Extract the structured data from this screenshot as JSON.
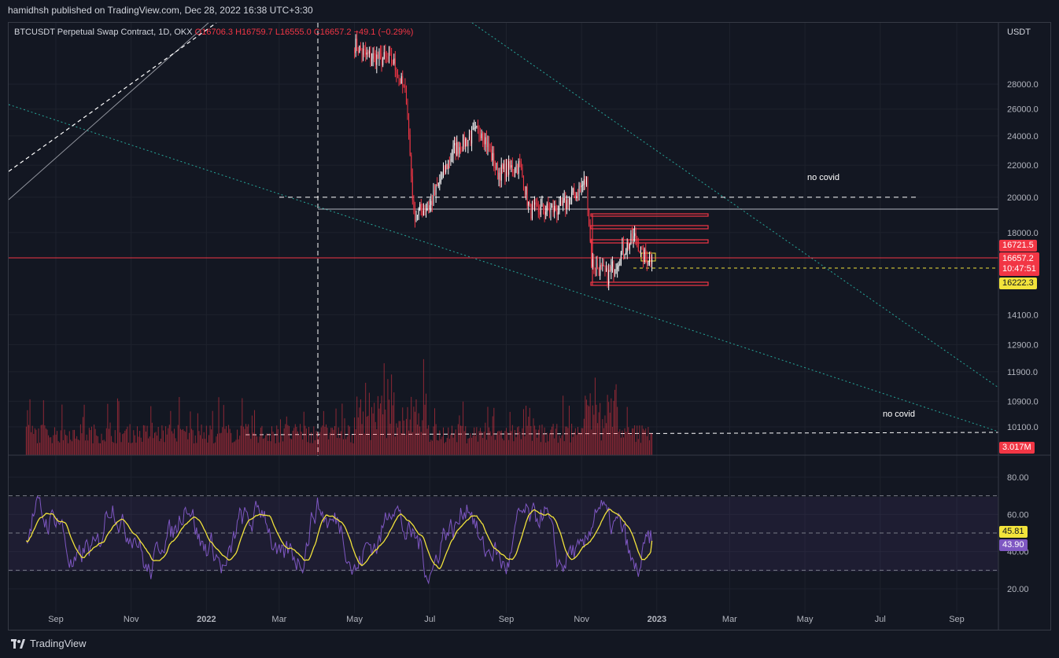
{
  "header": {
    "text": "hamidhsh published on TradingView.com, Dec 28, 2022 16:38 UTC+3:30"
  },
  "legend": {
    "symbol": "BTCUSDT Perpetual Swap Contract, 1D, OKX",
    "open": "O16706.3",
    "high": "H16759.7",
    "low": "L16555.0",
    "close": "C16657.2",
    "change": "−49.1 (−0.29%)"
  },
  "currency": "USDT",
  "annotations": {
    "top": "no covid",
    "bottom": "no covid"
  },
  "price_tags": {
    "p1": "16721.5",
    "last": "16657.2",
    "countdown": "10:47:51",
    "p2": "16222.3",
    "volume": "3.017M",
    "rsi_ma": "45.81",
    "rsi": "43.90"
  },
  "footer": {
    "brand": "TradingView"
  },
  "colors": {
    "bg": "#131722",
    "up": "#ffffff",
    "down": "#f23645",
    "rsi": "#7e57c2",
    "rsi_ma": "#f2e33b",
    "trend": "#26a69a"
  },
  "chart_data": [
    {
      "type": "candlestick",
      "title": "BTCUSDT Perpetual Swap Contract, 1D, OKX",
      "y_scale": "log",
      "y_ticks": [
        10100.0,
        10900.0,
        11900.0,
        12900.0,
        14100.0,
        18000.0,
        20000.0,
        22000.0,
        24000.0,
        26000.0,
        28000.0
      ],
      "x_ticks": [
        "Sep",
        "Nov",
        "2022",
        "Mar",
        "May",
        "Jul",
        "Sep",
        "Nov",
        "2023",
        "Mar",
        "May",
        "Jul",
        "Sep"
      ],
      "x_ticks_dates": [
        "2021-09-01",
        "2021-11-01",
        "2022-01-01",
        "2022-03-01",
        "2022-05-01",
        "2022-07-01",
        "2022-09-01",
        "2022-11-01",
        "2023-01-01",
        "2023-03-01",
        "2023-05-01",
        "2023-07-01",
        "2023-09-01"
      ],
      "approx_close_path": [
        [
          "2022-05-01",
          31500
        ],
        [
          "2022-05-10",
          30500
        ],
        [
          "2022-06-01",
          30000
        ],
        [
          "2022-06-12",
          27000
        ],
        [
          "2022-06-18",
          19000
        ],
        [
          "2022-07-01",
          19500
        ],
        [
          "2022-07-20",
          23000
        ],
        [
          "2022-08-12",
          24500
        ],
        [
          "2022-08-25",
          21500
        ],
        [
          "2022-09-12",
          22000
        ],
        [
          "2022-09-20",
          19200
        ],
        [
          "2022-10-15",
          19300
        ],
        [
          "2022-11-05",
          21000
        ],
        [
          "2022-11-09",
          16500
        ],
        [
          "2022-11-22",
          15800
        ],
        [
          "2022-12-05",
          17100
        ],
        [
          "2022-12-15",
          17800
        ],
        [
          "2022-12-20",
          16800
        ],
        [
          "2022-12-28",
          16657.2
        ]
      ],
      "last_close": 16657.2,
      "levels": [
        20000,
        19400
      ]
    },
    {
      "type": "bar",
      "title": "Volume",
      "last_value": "3.017M"
    },
    {
      "type": "line",
      "title": "RSI",
      "y_ticks": [
        20.0,
        40.0,
        60.0,
        80.0
      ],
      "bands": [
        30,
        50,
        70
      ],
      "series": [
        {
          "name": "RSI",
          "last": 43.9
        },
        {
          "name": "RSI MA",
          "last": 45.81
        }
      ]
    }
  ]
}
